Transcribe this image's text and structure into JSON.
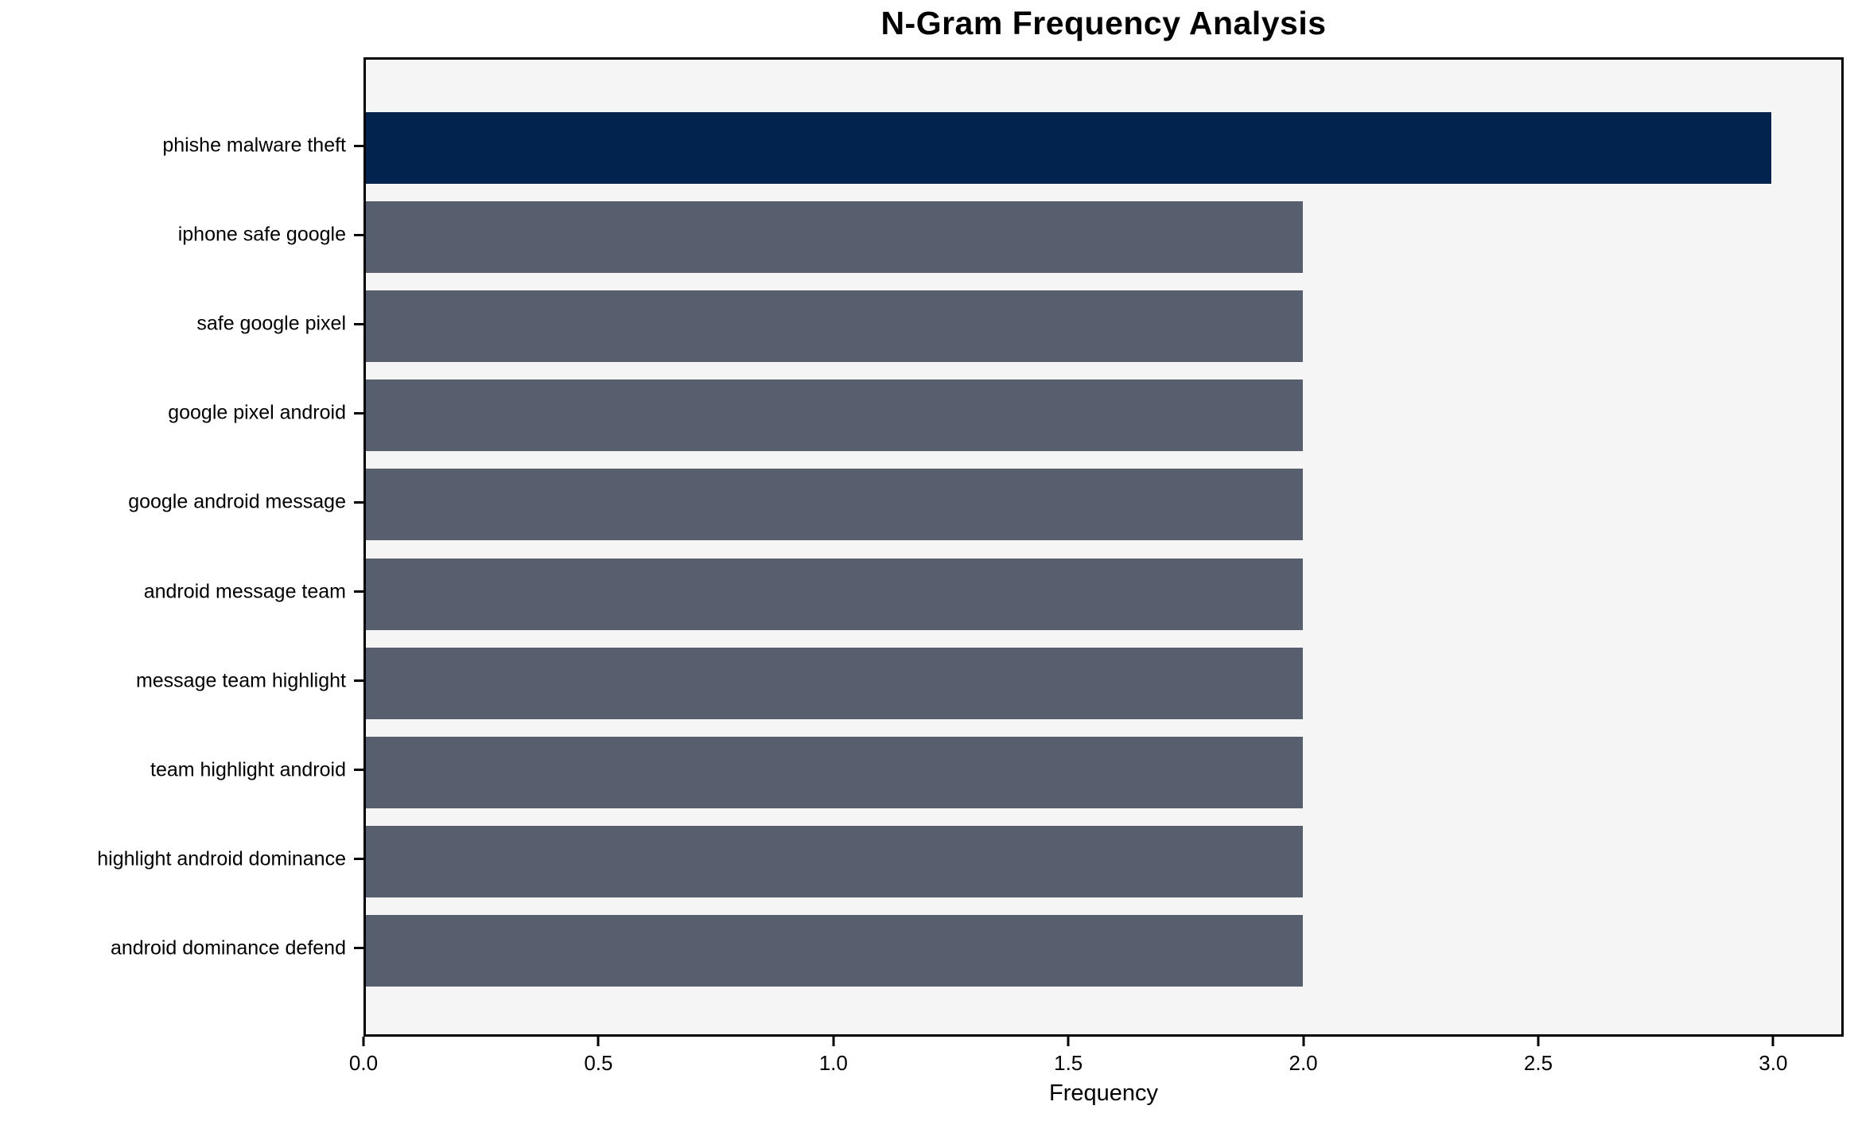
{
  "chart_data": {
    "type": "bar",
    "orientation": "horizontal",
    "title": "N-Gram Frequency Analysis",
    "xlabel": "Frequency",
    "ylabel": "",
    "categories": [
      "phishe malware theft",
      "iphone safe google",
      "safe google pixel",
      "google pixel android",
      "google android message",
      "android message team",
      "message team highlight",
      "team highlight android",
      "highlight android dominance",
      "android dominance defend"
    ],
    "values": [
      3,
      2,
      2,
      2,
      2,
      2,
      2,
      2,
      2,
      2
    ],
    "bar_colors": [
      "#02234d",
      "#575e6e",
      "#575e6e",
      "#575e6e",
      "#575e6e",
      "#575e6e",
      "#575e6e",
      "#575e6e",
      "#575e6e",
      "#575e6e"
    ],
    "xlim": [
      0,
      3.15
    ],
    "xticks": [
      "0.0",
      "0.5",
      "1.0",
      "1.5",
      "2.0",
      "2.5",
      "3.0"
    ],
    "grid": false,
    "legend": "none",
    "plot_background": "#f5f5f6",
    "axis_color": "#000000"
  }
}
